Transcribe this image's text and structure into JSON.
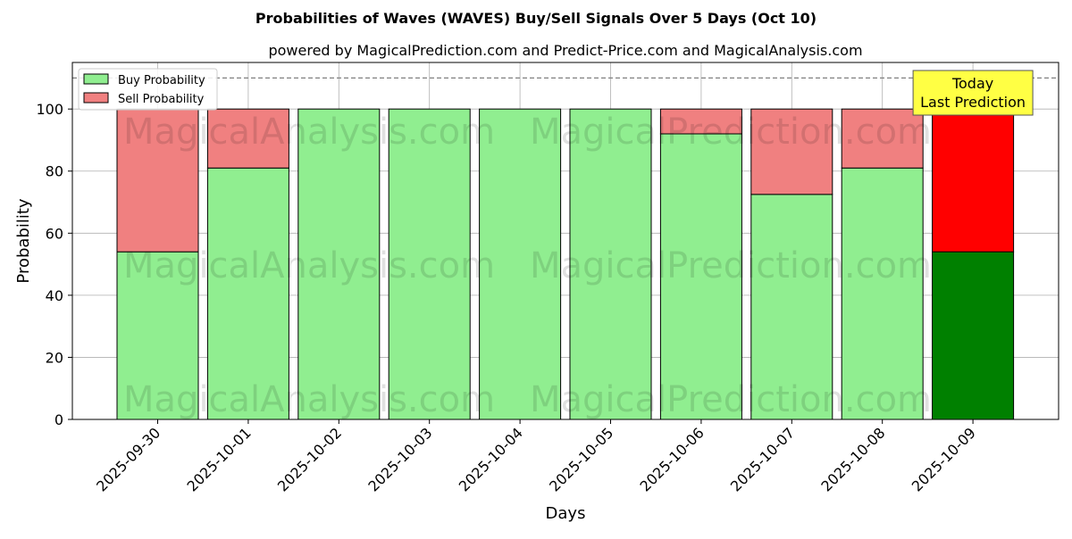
{
  "chart_data": {
    "type": "bar",
    "stacked": true,
    "title": "Probabilities of Waves (WAVES) Buy/Sell Signals Over 5 Days (Oct 10)",
    "subtitle": "powered by MagicalPrediction.com and Predict-Price.com and MagicalAnalysis.com",
    "xlabel": "Days",
    "ylabel": "Probability",
    "ylim": [
      0,
      115
    ],
    "yticks": [
      0,
      20,
      40,
      60,
      80,
      100
    ],
    "grid": true,
    "legend_position": "top-left",
    "reference_line": 110,
    "categories": [
      "2025-09-30",
      "2025-10-01",
      "2025-10-02",
      "2025-10-03",
      "2025-10-04",
      "2025-10-05",
      "2025-10-06",
      "2025-10-07",
      "2025-10-08",
      "2025-10-09"
    ],
    "series": [
      {
        "name": "Buy Probability",
        "color": "#90ee90",
        "values": [
          54,
          81,
          100,
          100,
          100,
          100,
          92,
          72.5,
          81,
          54
        ]
      },
      {
        "name": "Sell Probability",
        "color": "#f08080",
        "values": [
          46,
          19,
          0,
          0,
          0,
          0,
          8,
          27.5,
          19,
          46
        ]
      }
    ],
    "highlight": {
      "index": 9,
      "buy_color": "#008000",
      "sell_color": "#ff0000",
      "annotation": [
        "Today",
        "Last Prediction"
      ],
      "annotation_color": "#ffff44"
    },
    "watermarks": [
      "MagicalAnalysis.com",
      "MagicalPrediction.com"
    ]
  }
}
